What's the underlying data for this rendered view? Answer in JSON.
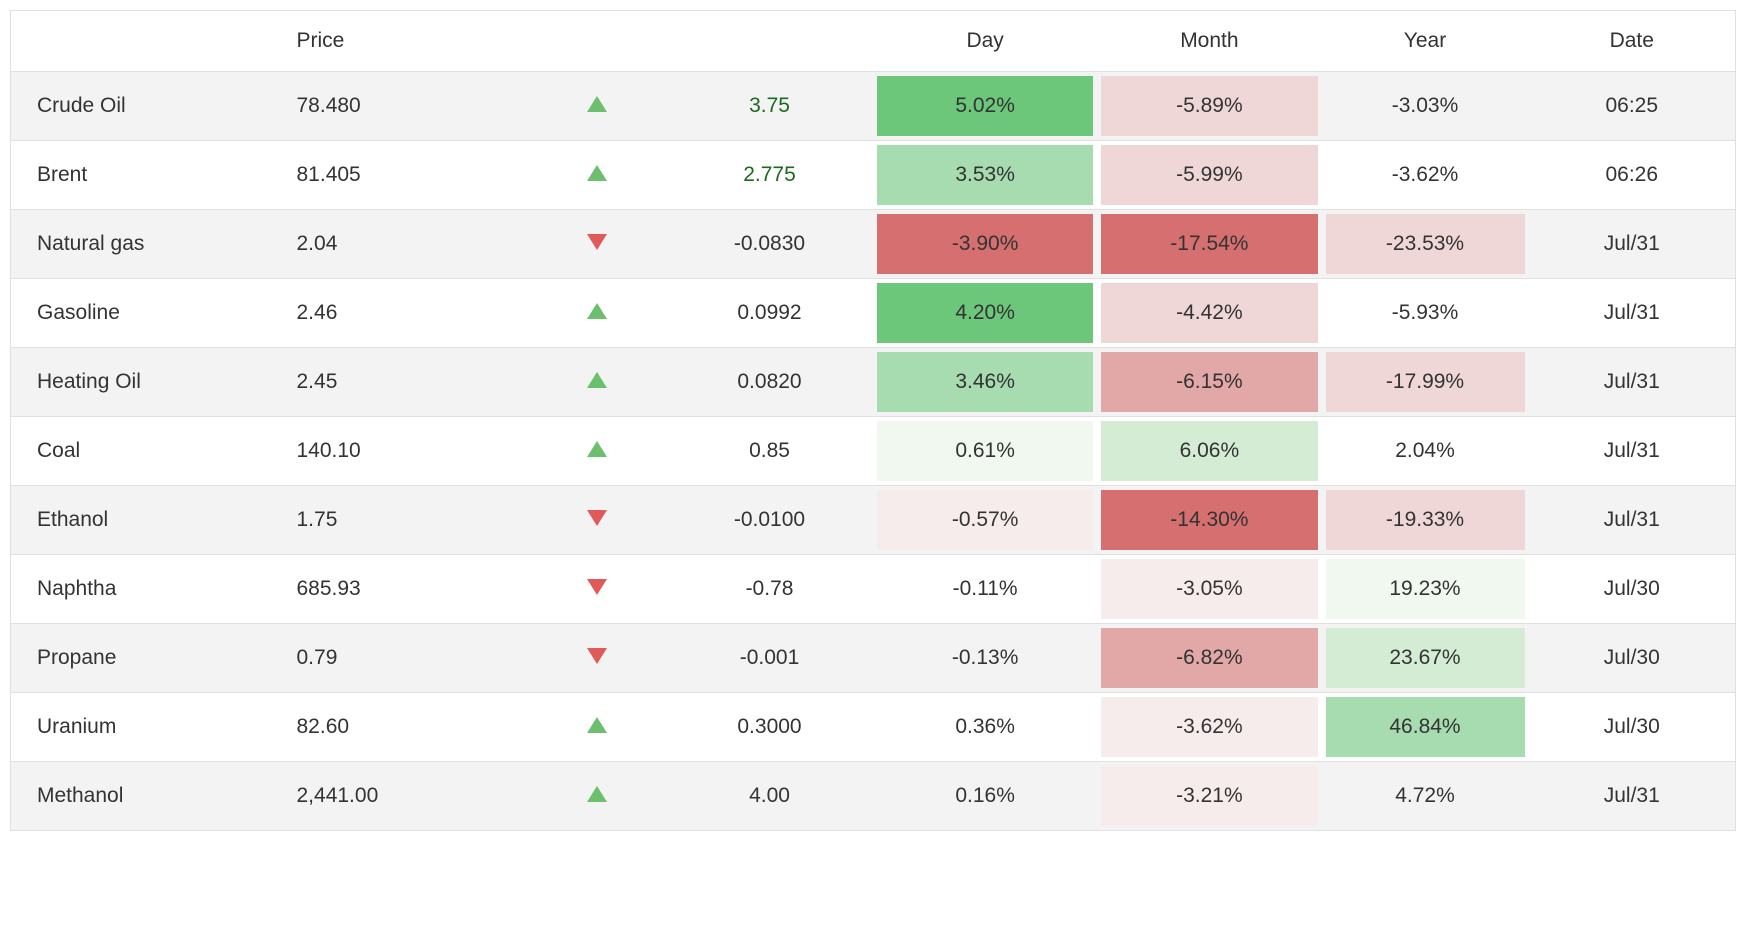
{
  "table": {
    "headers": {
      "name": "",
      "price": "Price",
      "arrow": "",
      "change": "",
      "day": "Day",
      "month": "Month",
      "year": "Year",
      "date": "Date"
    },
    "heat_palette": {
      "pos": [
        "#f0f8f0",
        "#d4ecd4",
        "#a7dcb0",
        "#6dc77a"
      ],
      "neg": [
        "#f7ecec",
        "#f0d7d7",
        "#e2a7a7",
        "#d66f6f"
      ]
    },
    "rows": [
      {
        "name": "Crude Oil",
        "price": "78.480",
        "dir": "up",
        "change": "3.75",
        "change_color": "pos",
        "day": {
          "v": "5.02%",
          "heat": "pos3"
        },
        "month": {
          "v": "-5.89%",
          "heat": "neg1"
        },
        "year": {
          "v": "-3.03%",
          "heat": null
        },
        "date": "06:25"
      },
      {
        "name": "Brent",
        "price": "81.405",
        "dir": "up",
        "change": "2.775",
        "change_color": "pos",
        "day": {
          "v": "3.53%",
          "heat": "pos2"
        },
        "month": {
          "v": "-5.99%",
          "heat": "neg1"
        },
        "year": {
          "v": "-3.62%",
          "heat": null
        },
        "date": "06:26"
      },
      {
        "name": "Natural gas",
        "price": "2.04",
        "dir": "down",
        "change": "-0.0830",
        "change_color": "neg",
        "day": {
          "v": "-3.90%",
          "heat": "neg3"
        },
        "month": {
          "v": "-17.54%",
          "heat": "neg3"
        },
        "year": {
          "v": "-23.53%",
          "heat": "neg1"
        },
        "date": "Jul/31"
      },
      {
        "name": "Gasoline",
        "price": "2.46",
        "dir": "up",
        "change": "0.0992",
        "change_color": "neg",
        "day": {
          "v": "4.20%",
          "heat": "pos3"
        },
        "month": {
          "v": "-4.42%",
          "heat": "neg1"
        },
        "year": {
          "v": "-5.93%",
          "heat": null
        },
        "date": "Jul/31"
      },
      {
        "name": "Heating Oil",
        "price": "2.45",
        "dir": "up",
        "change": "0.0820",
        "change_color": "neg",
        "day": {
          "v": "3.46%",
          "heat": "pos2"
        },
        "month": {
          "v": "-6.15%",
          "heat": "neg2"
        },
        "year": {
          "v": "-17.99%",
          "heat": "neg1"
        },
        "date": "Jul/31"
      },
      {
        "name": "Coal",
        "price": "140.10",
        "dir": "up",
        "change": "0.85",
        "change_color": "neg",
        "day": {
          "v": "0.61%",
          "heat": "pos0"
        },
        "month": {
          "v": "6.06%",
          "heat": "pos1"
        },
        "year": {
          "v": "2.04%",
          "heat": null
        },
        "date": "Jul/31"
      },
      {
        "name": "Ethanol",
        "price": "1.75",
        "dir": "down",
        "change": "-0.0100",
        "change_color": "neg",
        "day": {
          "v": "-0.57%",
          "heat": "neg0"
        },
        "month": {
          "v": "-14.30%",
          "heat": "neg3"
        },
        "year": {
          "v": "-19.33%",
          "heat": "neg1"
        },
        "date": "Jul/31"
      },
      {
        "name": "Naphtha",
        "price": "685.93",
        "dir": "down",
        "change": "-0.78",
        "change_color": "neg",
        "day": {
          "v": "-0.11%",
          "heat": null
        },
        "month": {
          "v": "-3.05%",
          "heat": "neg0"
        },
        "year": {
          "v": "19.23%",
          "heat": "pos0"
        },
        "date": "Jul/30"
      },
      {
        "name": "Propane",
        "price": "0.79",
        "dir": "down",
        "change": "-0.001",
        "change_color": "neg",
        "day": {
          "v": "-0.13%",
          "heat": null
        },
        "month": {
          "v": "-6.82%",
          "heat": "neg2"
        },
        "year": {
          "v": "23.67%",
          "heat": "pos1"
        },
        "date": "Jul/30"
      },
      {
        "name": "Uranium",
        "price": "82.60",
        "dir": "up",
        "change": "0.3000",
        "change_color": "neg",
        "day": {
          "v": "0.36%",
          "heat": null
        },
        "month": {
          "v": "-3.62%",
          "heat": "neg0"
        },
        "year": {
          "v": "46.84%",
          "heat": "pos2"
        },
        "date": "Jul/30"
      },
      {
        "name": "Methanol",
        "price": "2,441.00",
        "dir": "up",
        "change": "4.00",
        "change_color": "neg",
        "day": {
          "v": "0.16%",
          "heat": null
        },
        "month": {
          "v": "-3.21%",
          "heat": "neg0"
        },
        "year": {
          "v": "4.72%",
          "heat": null
        },
        "date": "Jul/31"
      }
    ]
  }
}
